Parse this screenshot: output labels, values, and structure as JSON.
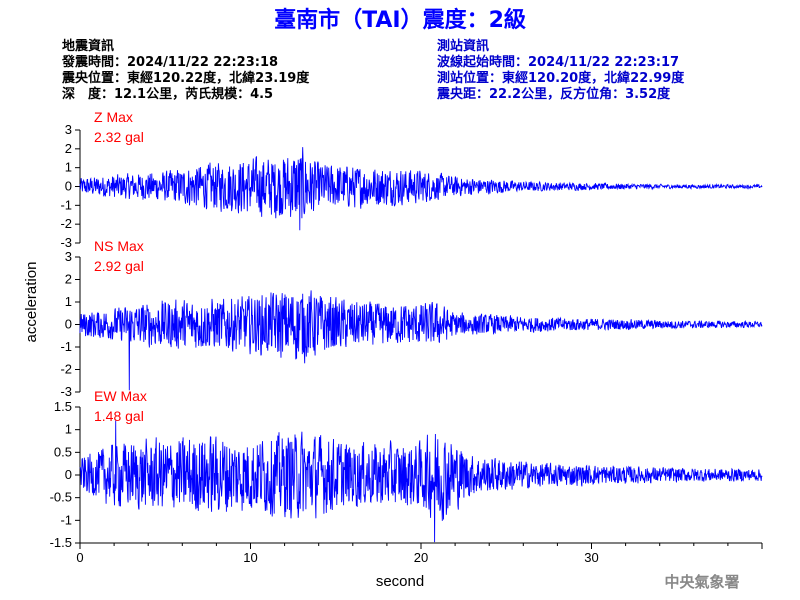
{
  "title": "臺南市（TAI）震度：2級",
  "colors": {
    "title": "#0000ff",
    "trace": "#0000ff",
    "max_label": "#ff0000",
    "station_info": "#0000cc"
  },
  "quake_info": [
    "地震資訊",
    "發震時間：2024/11/22 22:23:18",
    "震央位置：東經120.22度，北緯23.19度",
    "深　度：12.1公里，芮氏規模：4.5"
  ],
  "station_info": [
    "測站資訊",
    "波線起始時間：2024/11/22 22:23:17",
    "測站位置：東經120.20度，北緯22.99度",
    "震央距：22.2公里，反方位角：3.52度"
  ],
  "footer": "中央氣象署",
  "chart_data": {
    "type": "line",
    "xlabel": "second",
    "ylabel": "acceleration",
    "xlim": [
      0,
      40
    ],
    "x_ticks": [
      "0",
      "10",
      "20",
      "30"
    ],
    "grid": false,
    "panels": [
      {
        "name": "Z",
        "label_line1": "Z Max",
        "label_line2": "2.32 gal",
        "max_gal": 2.32,
        "ylim": [
          -3,
          3
        ],
        "y_ticks": [
          "3",
          "2",
          "1",
          "0",
          "-1",
          "-2",
          "-3"
        ],
        "envelope": [
          [
            0,
            0.5
          ],
          [
            2,
            0.7
          ],
          [
            5,
            0.9
          ],
          [
            7,
            1.3
          ],
          [
            10,
            1.7
          ],
          [
            12,
            1.9
          ],
          [
            13,
            2.3
          ],
          [
            14,
            1.4
          ],
          [
            17,
            1.2
          ],
          [
            20,
            1.0
          ],
          [
            22,
            0.6
          ],
          [
            26,
            0.3
          ],
          [
            30,
            0.2
          ],
          [
            35,
            0.12
          ],
          [
            40,
            0.1
          ]
        ]
      },
      {
        "name": "NS",
        "label_line1": "NS Max",
        "label_line2": "2.92 gal",
        "max_gal": 2.92,
        "ylim": [
          -3,
          3
        ],
        "y_ticks": [
          "3",
          "2",
          "1",
          "0",
          "-1",
          "-2",
          "-3"
        ],
        "envelope": [
          [
            0,
            0.6
          ],
          [
            2,
            0.8
          ],
          [
            3,
            1.0
          ],
          [
            5,
            1.2
          ],
          [
            8,
            1.3
          ],
          [
            10,
            1.4
          ],
          [
            13,
            1.9
          ],
          [
            15,
            1.3
          ],
          [
            18,
            1.0
          ],
          [
            21,
            1.1
          ],
          [
            22,
            0.6
          ],
          [
            26,
            0.4
          ],
          [
            30,
            0.3
          ],
          [
            35,
            0.2
          ],
          [
            40,
            0.15
          ]
        ]
      },
      {
        "name": "EW",
        "label_line1": "EW Max",
        "label_line2": "1.48 gal",
        "max_gal": 1.48,
        "ylim": [
          -1.5,
          1.5
        ],
        "y_ticks": [
          "1.5",
          "1",
          "0.5",
          "0",
          "-0.5",
          "-1",
          "-1.5"
        ],
        "envelope": [
          [
            0,
            0.4
          ],
          [
            2,
            0.8
          ],
          [
            5,
            0.9
          ],
          [
            8,
            1.0
          ],
          [
            10,
            0.9
          ],
          [
            13,
            1.1
          ],
          [
            16,
            0.8
          ],
          [
            20,
            0.8
          ],
          [
            21,
            1.2
          ],
          [
            23,
            0.5
          ],
          [
            27,
            0.3
          ],
          [
            30,
            0.25
          ],
          [
            35,
            0.18
          ],
          [
            40,
            0.15
          ]
        ]
      }
    ],
    "spikes": [
      [
        12.9,
        -2.32,
        0
      ],
      [
        2.9,
        -2.92,
        1
      ],
      [
        2.1,
        1.2,
        2
      ],
      [
        20.8,
        -1.48,
        2
      ]
    ]
  }
}
